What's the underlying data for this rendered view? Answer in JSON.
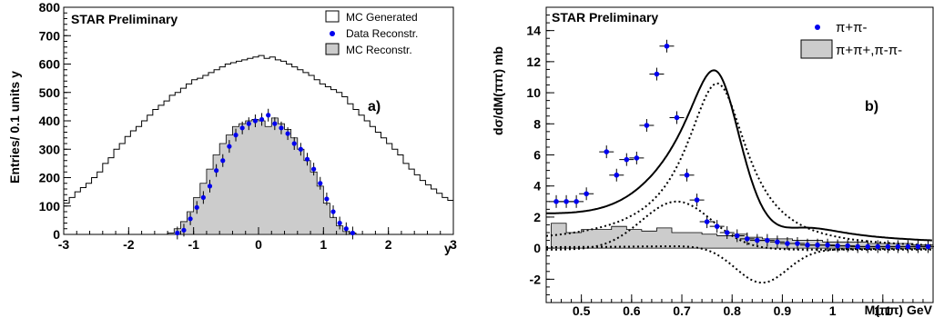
{
  "chart_data": [
    {
      "type": "histogram",
      "panel_label": "a)",
      "annotation": "STAR Preliminary",
      "xlabel": "y",
      "ylabel": "Entries/ 0.1 units y",
      "xlim": [
        -3,
        3
      ],
      "ylim": [
        0,
        800
      ],
      "x_ticks": [
        "-3",
        "-2",
        "-1",
        "0",
        "1",
        "2",
        "3"
      ],
      "y_ticks": [
        "0",
        "100",
        "200",
        "300",
        "400",
        "500",
        "600",
        "700",
        "800"
      ],
      "legend_position": "top-right",
      "legend": [
        "MC Generated",
        "Data Reconstr.",
        "MC Reconstr."
      ],
      "bin_edges_start": -3.0,
      "bin_width": 0.1,
      "series": [
        {
          "name": "MC Generated",
          "style": "step-outline",
          "values": [
            110,
            130,
            150,
            165,
            180,
            200,
            220,
            250,
            270,
            300,
            320,
            345,
            365,
            380,
            400,
            420,
            440,
            455,
            470,
            490,
            500,
            515,
            530,
            545,
            550,
            560,
            570,
            580,
            590,
            600,
            605,
            610,
            615,
            620,
            625,
            630,
            620,
            625,
            615,
            610,
            600,
            590,
            580,
            570,
            560,
            545,
            530,
            520,
            510,
            500,
            485,
            460,
            440,
            420,
            400,
            380,
            360,
            340,
            320,
            300,
            280,
            250,
            230,
            210,
            190,
            175,
            160,
            145,
            130,
            120
          ]
        },
        {
          "name": "MC Reconstr.",
          "style": "filled",
          "color": "#cccccc",
          "values": [
            0,
            5,
            20,
            45,
            80,
            130,
            180,
            230,
            280,
            320,
            350,
            380,
            390,
            400,
            405,
            400,
            380,
            410,
            390,
            370,
            340,
            300,
            260,
            220,
            170,
            110,
            60,
            30,
            10,
            5,
            0
          ]
        },
        {
          "name": "Data Reconstr.",
          "style": "points",
          "color": "#0000ee",
          "x": [
            -1.25,
            -1.15,
            -1.05,
            -0.95,
            -0.85,
            -0.75,
            -0.65,
            -0.55,
            -0.45,
            -0.35,
            -0.25,
            -0.15,
            -0.05,
            0.05,
            0.15,
            0.25,
            0.35,
            0.45,
            0.55,
            0.65,
            0.75,
            0.85,
            0.95,
            1.05,
            1.15,
            1.25,
            1.35,
            1.45
          ],
          "y": [
            5,
            15,
            55,
            95,
            130,
            170,
            225,
            260,
            310,
            350,
            375,
            390,
            400,
            405,
            420,
            390,
            375,
            355,
            320,
            300,
            265,
            230,
            180,
            125,
            80,
            40,
            20,
            5
          ]
        }
      ]
    },
    {
      "type": "line",
      "panel_label": "b)",
      "annotation": "STAR Preliminary",
      "xlabel": "M(ππ) GeV",
      "ylabel": "dσ/dM(ππ) mb",
      "xlim": [
        0.43,
        1.2
      ],
      "ylim": [
        -3.5,
        15.5
      ],
      "x_ticks": [
        "0.5",
        "0.6",
        "0.7",
        "0.8",
        "0.9",
        "1",
        "1.1"
      ],
      "y_ticks": [
        "-2",
        "0",
        "2",
        "4",
        "6",
        "8",
        "10",
        "12",
        "14"
      ],
      "legend_position": "top-right",
      "legend": [
        "π+π-",
        "π+π+,π-π-"
      ],
      "series": [
        {
          "name": "π+π-",
          "style": "points",
          "color": "#0000ee",
          "x": [
            0.45,
            0.47,
            0.49,
            0.51,
            0.55,
            0.57,
            0.59,
            0.61,
            0.63,
            0.65,
            0.67,
            0.69,
            0.71,
            0.73,
            0.75,
            0.77,
            0.79,
            0.81,
            0.83,
            0.85,
            0.87,
            0.89,
            0.91,
            0.93,
            0.95,
            0.97,
            0.99,
            1.01,
            1.03,
            1.05,
            1.07,
            1.09,
            1.11,
            1.13,
            1.15,
            1.17,
            1.19
          ],
          "y": [
            3.0,
            3.0,
            3.0,
            3.5,
            6.2,
            4.7,
            5.7,
            5.8,
            7.9,
            11.2,
            13.0,
            8.4,
            4.7,
            3.1,
            1.7,
            1.4,
            1.0,
            0.8,
            0.6,
            0.5,
            0.5,
            0.4,
            0.3,
            0.3,
            0.2,
            0.2,
            0.2,
            0.15,
            0.15,
            0.1,
            0.1,
            0.1,
            0.1,
            0.1,
            0.1,
            0.1,
            0.1
          ]
        },
        {
          "name": "π+π+,π-π-",
          "style": "filled-histogram",
          "color": "#cccccc",
          "x": [
            0.44,
            0.47,
            0.5,
            0.53,
            0.56,
            0.59,
            0.62,
            0.65,
            0.68,
            0.71,
            0.74,
            0.77,
            0.8,
            0.83,
            0.86,
            0.89,
            0.92,
            0.95,
            0.98,
            1.01,
            1.04,
            1.07,
            1.1,
            1.13,
            1.16,
            1.19
          ],
          "y": [
            1.6,
            1.0,
            1.2,
            1.2,
            1.4,
            1.2,
            1.1,
            1.3,
            1.0,
            1.0,
            0.9,
            0.8,
            0.9,
            0.7,
            0.6,
            0.6,
            0.5,
            0.5,
            0.4,
            0.4,
            0.4,
            0.3,
            0.3,
            0.3,
            0.2,
            0.2
          ]
        }
      ],
      "curves": [
        {
          "kind": "total-fit",
          "style": "solid"
        },
        {
          "kind": "rho-breit-wigner",
          "style": "dotted"
        },
        {
          "kind": "direct-pi-pi",
          "style": "dotted"
        },
        {
          "kind": "interference",
          "style": "dotted"
        }
      ]
    }
  ]
}
